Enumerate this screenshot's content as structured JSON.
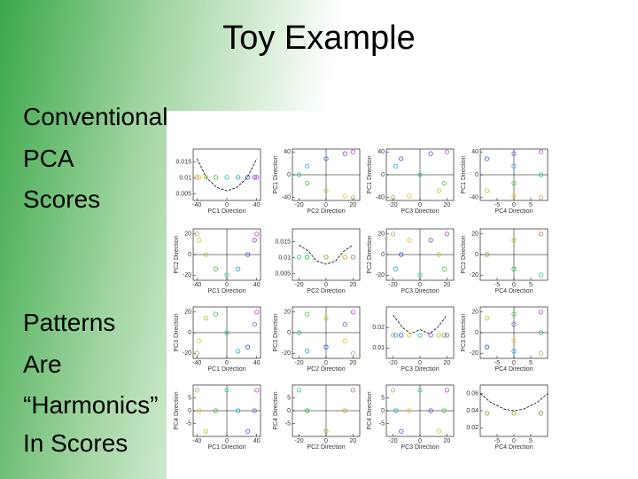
{
  "title": "Toy Example",
  "text_lines": [
    "Conventional",
    "PCA",
    "Scores",
    "Patterns",
    "Are",
    "“Harmonics”",
    "In Scores"
  ],
  "chart_data": {
    "type": "scatter-matrix",
    "axis_names": [
      "PC1 Direction",
      "PC2 Direction",
      "PC3 Direction",
      "PC4 Direction"
    ],
    "scores": [
      [
        40,
        37,
        28,
        15,
        0,
        -15,
        -28,
        -37,
        -40
      ],
      [
        20,
        14,
        0,
        -14,
        -20,
        -14,
        0,
        14,
        20
      ],
      [
        20,
        8,
        -14,
        -18,
        0,
        18,
        14,
        -8,
        -20
      ],
      [
        8,
        0,
        -8,
        0,
        8,
        0,
        -8,
        0,
        8
      ]
    ],
    "limits": [
      [
        -45,
        45
      ],
      [
        -25,
        25
      ],
      [
        -25,
        25
      ],
      [
        -10,
        10
      ]
    ],
    "ticks": [
      [
        -40,
        0,
        40
      ],
      [
        -20,
        0,
        20
      ],
      [
        -20,
        0,
        20
      ],
      [
        -5,
        0,
        5
      ]
    ],
    "density_x": [
      [
        -40,
        -27,
        -13,
        0,
        13,
        27,
        40
      ],
      [
        -20,
        -13,
        -7,
        0,
        7,
        13,
        20
      ],
      [
        -20,
        -13,
        -7,
        0,
        7,
        13,
        20
      ],
      [
        -10,
        -7,
        -3,
        0,
        3,
        7,
        10
      ]
    ],
    "densities": [
      [
        0.016,
        0.01,
        0.007,
        0.006,
        0.007,
        0.01,
        0.016
      ],
      [
        0.014,
        0.012,
        0.009,
        0.008,
        0.009,
        0.012,
        0.014
      ],
      [
        0.026,
        0.02,
        0.017,
        0.019,
        0.017,
        0.02,
        0.026
      ],
      [
        0.06,
        0.05,
        0.042,
        0.04,
        0.042,
        0.05,
        0.06
      ]
    ],
    "density_limits": [
      [
        0.003,
        0.019
      ],
      [
        0.003,
        0.019
      ],
      [
        0.005,
        0.03
      ],
      [
        0.01,
        0.07
      ]
    ],
    "density_ticks": [
      [
        0.005,
        0.01,
        0.015
      ],
      [
        0.005,
        0.01,
        0.015
      ],
      [
        0.01,
        0.02
      ],
      [
        0.02,
        0.04,
        0.06
      ]
    ],
    "point_colors": [
      "#c040c0",
      "#8040e0",
      "#3050e0",
      "#20a0e0",
      "#20c0a0",
      "#40c040",
      "#a0d020",
      "#e0c020",
      "#c0a060"
    ]
  }
}
